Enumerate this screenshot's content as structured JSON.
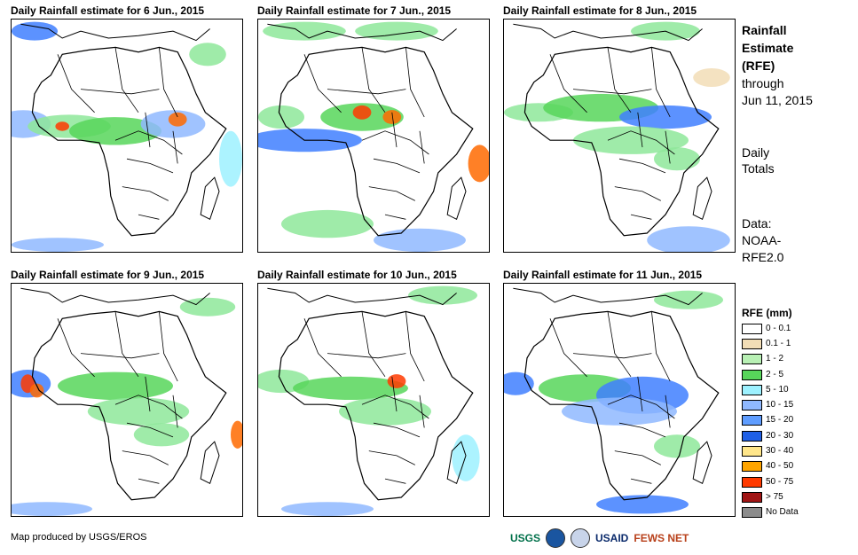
{
  "panels": [
    {
      "title": "Daily Rainfall estimate for 6 Jun., 2015",
      "blobs": [
        [
          0.1,
          0.05,
          0.1,
          0.04,
          "#3f7fff"
        ],
        [
          0.05,
          0.45,
          0.12,
          0.06,
          "#8fb8ff"
        ],
        [
          0.25,
          0.46,
          0.18,
          0.05,
          "#8ee89a"
        ],
        [
          0.45,
          0.48,
          0.2,
          0.06,
          "#57d65a"
        ],
        [
          0.7,
          0.45,
          0.14,
          0.06,
          "#8fb8ff"
        ],
        [
          0.72,
          0.43,
          0.04,
          0.03,
          "#ff6a00"
        ],
        [
          0.22,
          0.46,
          0.03,
          0.02,
          "#ff3a00"
        ],
        [
          0.85,
          0.15,
          0.08,
          0.05,
          "#8ee89a"
        ],
        [
          0.2,
          0.97,
          0.2,
          0.03,
          "#8fb8ff"
        ],
        [
          0.95,
          0.6,
          0.05,
          0.12,
          "#9df1ff"
        ]
      ]
    },
    {
      "title": "Daily Rainfall estimate for 7 Jun., 2015",
      "blobs": [
        [
          0.2,
          0.05,
          0.18,
          0.04,
          "#8ee89a"
        ],
        [
          0.6,
          0.05,
          0.18,
          0.04,
          "#8ee89a"
        ],
        [
          0.1,
          0.42,
          0.1,
          0.05,
          "#8ee89a"
        ],
        [
          0.45,
          0.42,
          0.18,
          0.06,
          "#57d65a"
        ],
        [
          0.45,
          0.4,
          0.04,
          0.03,
          "#ff3a00"
        ],
        [
          0.58,
          0.42,
          0.04,
          0.03,
          "#ff6a00"
        ],
        [
          0.2,
          0.52,
          0.25,
          0.05,
          "#3f7fff"
        ],
        [
          0.96,
          0.62,
          0.05,
          0.08,
          "#ff6a00"
        ],
        [
          0.7,
          0.95,
          0.2,
          0.05,
          "#8fb8ff"
        ],
        [
          0.3,
          0.88,
          0.2,
          0.06,
          "#8ee89a"
        ]
      ]
    },
    {
      "title": "Daily Rainfall estimate for 8 Jun., 2015",
      "blobs": [
        [
          0.15,
          0.4,
          0.15,
          0.04,
          "#8ee89a"
        ],
        [
          0.42,
          0.38,
          0.25,
          0.06,
          "#57d65a"
        ],
        [
          0.7,
          0.42,
          0.2,
          0.05,
          "#3f7fff"
        ],
        [
          0.55,
          0.52,
          0.25,
          0.06,
          "#8ee89a"
        ],
        [
          0.75,
          0.6,
          0.1,
          0.05,
          "#8ee89a"
        ],
        [
          0.8,
          0.95,
          0.18,
          0.06,
          "#8fb8ff"
        ],
        [
          0.7,
          0.05,
          0.15,
          0.04,
          "#8ee89a"
        ],
        [
          0.9,
          0.25,
          0.08,
          0.04,
          "#f2ddb6"
        ]
      ]
    },
    {
      "title": "Daily Rainfall estimate for 9 Jun., 2015",
      "blobs": [
        [
          0.07,
          0.43,
          0.1,
          0.06,
          "#3f7fff"
        ],
        [
          0.07,
          0.43,
          0.03,
          0.04,
          "#ff3a00"
        ],
        [
          0.11,
          0.46,
          0.03,
          0.03,
          "#ff6a00"
        ],
        [
          0.45,
          0.44,
          0.25,
          0.06,
          "#57d65a"
        ],
        [
          0.55,
          0.55,
          0.22,
          0.06,
          "#8ee89a"
        ],
        [
          0.65,
          0.65,
          0.12,
          0.05,
          "#8ee89a"
        ],
        [
          0.98,
          0.65,
          0.03,
          0.06,
          "#ff6a00"
        ],
        [
          0.15,
          0.97,
          0.2,
          0.03,
          "#8fb8ff"
        ],
        [
          0.85,
          0.1,
          0.12,
          0.04,
          "#8ee89a"
        ]
      ]
    },
    {
      "title": "Daily Rainfall estimate for 10 Jun., 2015",
      "blobs": [
        [
          0.1,
          0.42,
          0.12,
          0.05,
          "#8ee89a"
        ],
        [
          0.4,
          0.45,
          0.25,
          0.05,
          "#57d65a"
        ],
        [
          0.6,
          0.42,
          0.04,
          0.03,
          "#ff3a00"
        ],
        [
          0.55,
          0.55,
          0.2,
          0.06,
          "#8ee89a"
        ],
        [
          0.3,
          0.97,
          0.2,
          0.03,
          "#8fb8ff"
        ],
        [
          0.8,
          0.05,
          0.15,
          0.04,
          "#8ee89a"
        ],
        [
          0.9,
          0.75,
          0.06,
          0.1,
          "#9df1ff"
        ]
      ]
    },
    {
      "title": "Daily Rainfall estimate for 11 Jun., 2015",
      "blobs": [
        [
          0.05,
          0.43,
          0.08,
          0.05,
          "#3f7fff"
        ],
        [
          0.35,
          0.45,
          0.2,
          0.06,
          "#57d65a"
        ],
        [
          0.6,
          0.48,
          0.2,
          0.08,
          "#3f7fff"
        ],
        [
          0.5,
          0.55,
          0.25,
          0.06,
          "#8fb8ff"
        ],
        [
          0.75,
          0.7,
          0.1,
          0.05,
          "#8ee89a"
        ],
        [
          0.6,
          0.95,
          0.2,
          0.04,
          "#3f7fff"
        ],
        [
          0.8,
          0.07,
          0.15,
          0.04,
          "#8ee89a"
        ]
      ]
    }
  ],
  "side": {
    "title_lines": [
      "Rainfall",
      "Estimate",
      "(RFE)"
    ],
    "through": "through",
    "through_date": "Jun 11, 2015",
    "daily": "Daily",
    "totals": "Totals",
    "data_label": "Data:",
    "data_source_1": "NOAA-",
    "data_source_2": "RFE2.0"
  },
  "legend": {
    "title": "RFE (mm)",
    "items": [
      {
        "label": "0 - 0.1",
        "color": "#ffffff"
      },
      {
        "label": "0.1 - 1",
        "color": "#f2ddb6"
      },
      {
        "label": "1 - 2",
        "color": "#b8f0b4"
      },
      {
        "label": "2 - 5",
        "color": "#57d65a"
      },
      {
        "label": "5 - 10",
        "color": "#9df1ff"
      },
      {
        "label": "10 - 15",
        "color": "#8fb8ff"
      },
      {
        "label": "15 - 20",
        "color": "#5f9dff"
      },
      {
        "label": "20 - 30",
        "color": "#1f5fe6"
      },
      {
        "label": "30 - 40",
        "color": "#ffe68a"
      },
      {
        "label": "40 - 50",
        "color": "#ffa500"
      },
      {
        "label": "50 - 75",
        "color": "#ff3a00"
      },
      {
        "label": "> 75",
        "color": "#a01515"
      },
      {
        "label": "No Data",
        "color": "#8c8c8c"
      }
    ]
  },
  "credit": "Map produced by USGS/EROS",
  "logos": {
    "usgs": "USGS",
    "usaid": "USAID",
    "fewsnet": "FEWS NET"
  }
}
